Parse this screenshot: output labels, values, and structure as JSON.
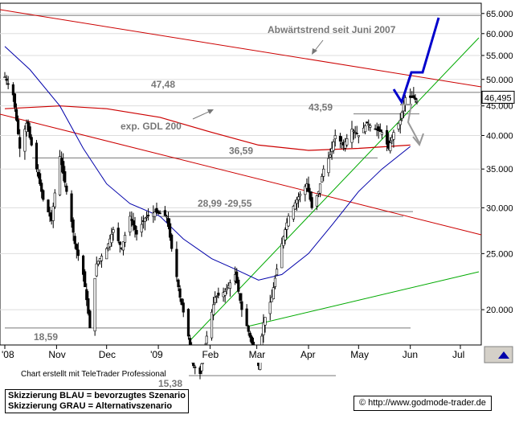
{
  "chart_data": {
    "type": "candlestick",
    "y_scale": "log",
    "ylim": [
      14.5,
      67
    ],
    "y_ticks": [
      "65.000",
      "60.000",
      "55.000",
      "50.000",
      "45.000",
      "40.000",
      "35.000",
      "30.000",
      "25.000",
      "20.000"
    ],
    "x_ticks": [
      "'08",
      "Nov",
      "Dec",
      "'09",
      "Feb",
      "Mar",
      "Apr",
      "May",
      "Jun",
      "Jul"
    ],
    "last_price": "46,495",
    "price_path": [
      [
        "2008-10-01",
        50.5
      ],
      [
        "2008-10-06",
        47
      ],
      [
        "2008-10-10",
        38
      ],
      [
        "2008-10-14",
        42
      ],
      [
        "2008-10-20",
        35
      ],
      [
        "2008-10-24",
        31
      ],
      [
        "2008-10-29",
        28.5
      ],
      [
        "2008-11-03",
        36.8
      ],
      [
        "2008-11-07",
        32
      ],
      [
        "2008-11-12",
        26
      ],
      [
        "2008-11-17",
        23
      ],
      [
        "2008-11-21",
        18.6
      ],
      [
        "2008-11-25",
        24
      ],
      [
        "2008-12-01",
        25.5
      ],
      [
        "2008-12-05",
        27.5
      ],
      [
        "2008-12-10",
        25.5
      ],
      [
        "2008-12-15",
        29
      ],
      [
        "2008-12-19",
        27
      ],
      [
        "2008-12-24",
        28.8
      ],
      [
        "2008-12-30",
        29.5
      ],
      [
        "2009-01-06",
        29
      ],
      [
        "2009-01-09",
        25.5
      ],
      [
        "2009-01-14",
        21
      ],
      [
        "2009-01-19",
        18
      ],
      [
        "2009-01-22",
        16
      ],
      [
        "2009-01-26",
        15.5
      ],
      [
        "2009-01-30",
        18
      ],
      [
        "2009-02-04",
        21
      ],
      [
        "2009-02-10",
        21.5
      ],
      [
        "2009-02-16",
        23
      ],
      [
        "2009-02-20",
        20
      ],
      [
        "2009-02-26",
        17.5
      ],
      [
        "2009-03-02",
        16
      ],
      [
        "2009-03-05",
        19
      ],
      [
        "2009-03-10",
        21
      ],
      [
        "2009-03-16",
        26
      ],
      [
        "2009-03-20",
        29
      ],
      [
        "2009-03-25",
        31
      ],
      [
        "2009-03-31",
        33
      ],
      [
        "2009-04-03",
        30
      ],
      [
        "2009-04-07",
        32
      ],
      [
        "2009-04-10",
        35
      ],
      [
        "2009-04-14",
        37
      ],
      [
        "2009-04-17",
        40
      ],
      [
        "2009-04-22",
        38.5
      ],
      [
        "2009-04-27",
        41
      ],
      [
        "2009-05-01",
        40
      ],
      [
        "2009-05-06",
        42
      ],
      [
        "2009-05-11",
        41
      ],
      [
        "2009-05-15",
        40.5
      ],
      [
        "2009-05-19",
        38
      ],
      [
        "2009-05-22",
        40.5
      ],
      [
        "2009-05-26",
        42.5
      ],
      [
        "2009-05-29",
        46.5
      ],
      [
        "2009-06-03",
        46.5
      ],
      [
        "2009-06-05",
        45.8
      ]
    ],
    "ma200_label": "exp. GDL 200",
    "ma200_path": [
      [
        "2008-10-01",
        44.5
      ],
      [
        "2008-11-03",
        45
      ],
      [
        "2008-12-01",
        44.5
      ],
      [
        "2009-01-02",
        43
      ],
      [
        "2009-02-02",
        40.5
      ],
      [
        "2009-03-02",
        38.5
      ],
      [
        "2009-04-01",
        37.7
      ],
      [
        "2009-05-01",
        38
      ],
      [
        "2009-06-01",
        38.5
      ]
    ],
    "ma_blue_path": [
      [
        "2008-10-01",
        57
      ],
      [
        "2008-10-16",
        52
      ],
      [
        "2008-11-03",
        45
      ],
      [
        "2008-11-17",
        38
      ],
      [
        "2008-12-01",
        33
      ],
      [
        "2008-12-15",
        30.5
      ],
      [
        "2009-01-02",
        29
      ],
      [
        "2009-01-16",
        26.5
      ],
      [
        "2009-02-02",
        24.5
      ],
      [
        "2009-02-16",
        23.5
      ],
      [
        "2009-03-02",
        22.5
      ],
      [
        "2009-03-16",
        23
      ],
      [
        "2009-04-01",
        25
      ],
      [
        "2009-04-15",
        28
      ],
      [
        "2009-05-01",
        32
      ],
      [
        "2009-05-15",
        35
      ],
      [
        "2009-06-01",
        38.3
      ]
    ],
    "horizontal_levels": [
      {
        "label": "47,48",
        "value": 47.48
      },
      {
        "label": "43,59",
        "value": 43.59
      },
      {
        "label": "36,59",
        "value": 36.59
      },
      {
        "label": "28,99 -29,55",
        "value": 29.55
      },
      {
        "label": "",
        "value": 28.99
      },
      {
        "label": "18,59",
        "value": 18.59
      },
      {
        "label": "15,38",
        "value": 15.38
      }
    ],
    "downtrend_label": "Abwärtstrend seit Juni 2007",
    "scenario_blue_label": "Skizzierung BLAU = bevorzugtes Szenario",
    "scenario_gray_label": "Skizzierung GRAU = Alternativszenario",
    "credit": "Chart erstellt mit TeleTrader Professional",
    "source": "http://www.godmode-trader.de",
    "colors": {
      "candles": "#000000",
      "ma200": "#cc0000",
      "ma_blue": "#0000aa",
      "trendline_red": "#cc0000",
      "trendline_green": "#00aa00",
      "scenario_blue": "#0000cc",
      "scenario_gray": "#999999",
      "levels": "#666666",
      "annotation": "#777777"
    }
  }
}
